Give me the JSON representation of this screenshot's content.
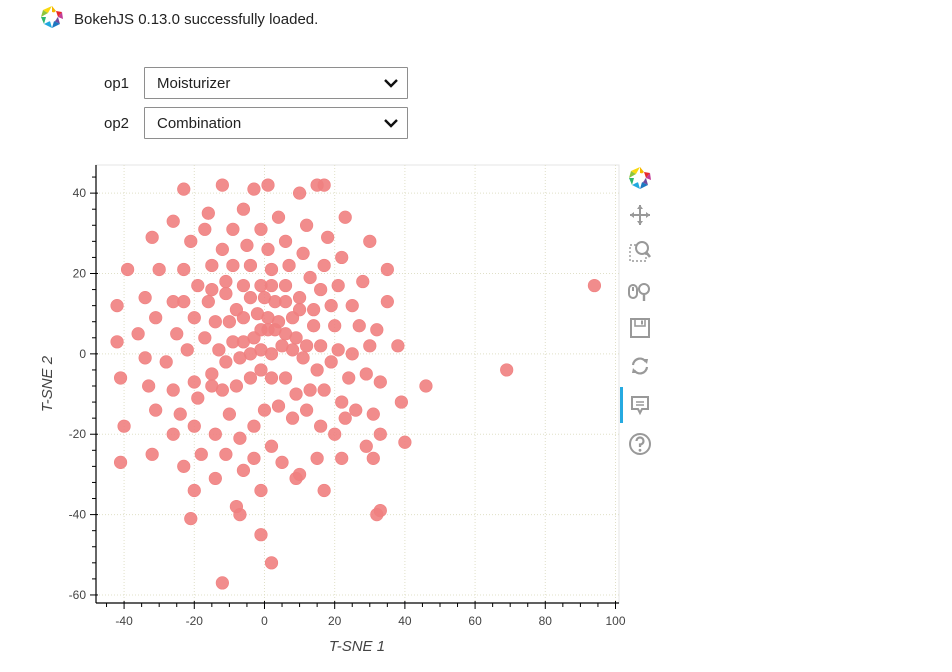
{
  "banner": {
    "text": "BokehJS 0.13.0 successfully loaded.",
    "logo_icon": "bokeh-logo-icon"
  },
  "controls": [
    {
      "label": "op1",
      "value": "Moisturizer"
    },
    {
      "label": "op2",
      "value": "Combination"
    }
  ],
  "toolbar": {
    "tools": [
      "bokeh-logo-icon",
      "pan-icon",
      "box-zoom-icon",
      "wheel-zoom-icon",
      "save-icon",
      "reset-icon",
      "hover-icon",
      "help-icon"
    ],
    "active_tool": "hover-icon",
    "active_color": "#26aae1"
  },
  "chart_data": {
    "type": "scatter",
    "xlabel": "T-SNE 1",
    "ylabel": "T-SNE 2",
    "xlim": [
      -48,
      101
    ],
    "ylim": [
      -62,
      47
    ],
    "xticks": [
      -40,
      -20,
      0,
      20,
      40,
      60,
      80,
      100
    ],
    "yticks": [
      -60,
      -40,
      -20,
      0,
      20,
      40
    ],
    "grid": true,
    "marker_color": "#f08080",
    "points": [
      [
        -23,
        41
      ],
      [
        -12,
        42
      ],
      [
        -3,
        41
      ],
      [
        1,
        42
      ],
      [
        10,
        40
      ],
      [
        15,
        42
      ],
      [
        17,
        42
      ],
      [
        -16,
        35
      ],
      [
        -6,
        36
      ],
      [
        4,
        34
      ],
      [
        12,
        32
      ],
      [
        23,
        34
      ],
      [
        -26,
        33
      ],
      [
        -17,
        31
      ],
      [
        -9,
        31
      ],
      [
        -1,
        31
      ],
      [
        6,
        28
      ],
      [
        18,
        29
      ],
      [
        30,
        28
      ],
      [
        -32,
        29
      ],
      [
        -21,
        28
      ],
      [
        -12,
        26
      ],
      [
        -5,
        27
      ],
      [
        1,
        26
      ],
      [
        11,
        25
      ],
      [
        22,
        24
      ],
      [
        -39,
        21
      ],
      [
        -30,
        21
      ],
      [
        -23,
        21
      ],
      [
        -15,
        22
      ],
      [
        -9,
        22
      ],
      [
        -4,
        22
      ],
      [
        2,
        21
      ],
      [
        7,
        22
      ],
      [
        13,
        19
      ],
      [
        17,
        22
      ],
      [
        35,
        21
      ],
      [
        -42,
        12
      ],
      [
        -34,
        14
      ],
      [
        -26,
        13
      ],
      [
        -19,
        17
      ],
      [
        -15,
        16
      ],
      [
        -11,
        18
      ],
      [
        -6,
        17
      ],
      [
        -1,
        17
      ],
      [
        2,
        17
      ],
      [
        6,
        17
      ],
      [
        10,
        14
      ],
      [
        16,
        16
      ],
      [
        21,
        17
      ],
      [
        28,
        18
      ],
      [
        -23,
        13
      ],
      [
        -16,
        13
      ],
      [
        -11,
        15
      ],
      [
        -8,
        11
      ],
      [
        -4,
        14
      ],
      [
        0,
        14
      ],
      [
        3,
        13
      ],
      [
        6,
        13
      ],
      [
        10,
        11
      ],
      [
        14,
        11
      ],
      [
        19,
        12
      ],
      [
        25,
        12
      ],
      [
        35,
        13
      ],
      [
        -36,
        5
      ],
      [
        -31,
        9
      ],
      [
        -25,
        5
      ],
      [
        -20,
        9
      ],
      [
        -14,
        8
      ],
      [
        -10,
        8
      ],
      [
        -6,
        9
      ],
      [
        -2,
        10
      ],
      [
        1,
        9
      ],
      [
        4,
        8
      ],
      [
        8,
        9
      ],
      [
        14,
        7
      ],
      [
        20,
        7
      ],
      [
        27,
        7
      ],
      [
        32,
        6
      ],
      [
        -42,
        3
      ],
      [
        -34,
        -1
      ],
      [
        -28,
        -2
      ],
      [
        -22,
        1
      ],
      [
        -17,
        4
      ],
      [
        -13,
        1
      ],
      [
        -9,
        3
      ],
      [
        -6,
        3
      ],
      [
        -3,
        4
      ],
      [
        -1,
        6
      ],
      [
        1,
        6
      ],
      [
        3,
        6
      ],
      [
        6,
        5
      ],
      [
        9,
        4
      ],
      [
        12,
        2
      ],
      [
        16,
        2
      ],
      [
        21,
        1
      ],
      [
        25,
        0
      ],
      [
        30,
        2
      ],
      [
        38,
        2
      ],
      [
        -41,
        -6
      ],
      [
        -33,
        -8
      ],
      [
        -26,
        -9
      ],
      [
        -20,
        -7
      ],
      [
        -15,
        -5
      ],
      [
        -11,
        -2
      ],
      [
        -7,
        -1
      ],
      [
        -4,
        0
      ],
      [
        -1,
        1
      ],
      [
        2,
        0
      ],
      [
        5,
        2
      ],
      [
        8,
        1
      ],
      [
        11,
        -1
      ],
      [
        15,
        -4
      ],
      [
        19,
        -2
      ],
      [
        24,
        -6
      ],
      [
        29,
        -5
      ],
      [
        33,
        -7
      ],
      [
        46,
        -8
      ],
      [
        -31,
        -14
      ],
      [
        -24,
        -15
      ],
      [
        -19,
        -11
      ],
      [
        -15,
        -8
      ],
      [
        -12,
        -9
      ],
      [
        -8,
        -8
      ],
      [
        -4,
        -6
      ],
      [
        -1,
        -4
      ],
      [
        2,
        -6
      ],
      [
        6,
        -6
      ],
      [
        9,
        -10
      ],
      [
        13,
        -9
      ],
      [
        17,
        -9
      ],
      [
        22,
        -12
      ],
      [
        26,
        -14
      ],
      [
        31,
        -15
      ],
      [
        39,
        -12
      ],
      [
        -40,
        -18
      ],
      [
        -32,
        -25
      ],
      [
        -26,
        -20
      ],
      [
        -20,
        -18
      ],
      [
        -14,
        -20
      ],
      [
        -10,
        -15
      ],
      [
        -7,
        -21
      ],
      [
        -3,
        -18
      ],
      [
        0,
        -14
      ],
      [
        4,
        -13
      ],
      [
        8,
        -16
      ],
      [
        12,
        -14
      ],
      [
        16,
        -18
      ],
      [
        20,
        -20
      ],
      [
        23,
        -16
      ],
      [
        29,
        -23
      ],
      [
        33,
        -20
      ],
      [
        40,
        -22
      ],
      [
        -41,
        -27
      ],
      [
        -23,
        -28
      ],
      [
        -18,
        -25
      ],
      [
        -11,
        -25
      ],
      [
        -6,
        -29
      ],
      [
        -3,
        -26
      ],
      [
        2,
        -23
      ],
      [
        5,
        -27
      ],
      [
        9,
        -31
      ],
      [
        15,
        -26
      ],
      [
        22,
        -26
      ],
      [
        31,
        -26
      ],
      [
        -20,
        -34
      ],
      [
        -14,
        -31
      ],
      [
        -1,
        -34
      ],
      [
        10,
        -30
      ],
      [
        17,
        -34
      ],
      [
        -8,
        -38
      ],
      [
        -7,
        -40
      ],
      [
        -21,
        -41
      ],
      [
        32,
        -40
      ],
      [
        33,
        -39
      ],
      [
        -1,
        -45
      ],
      [
        2,
        -52
      ],
      [
        -12,
        -57
      ],
      [
        69,
        -4
      ],
      [
        94,
        17
      ]
    ]
  }
}
